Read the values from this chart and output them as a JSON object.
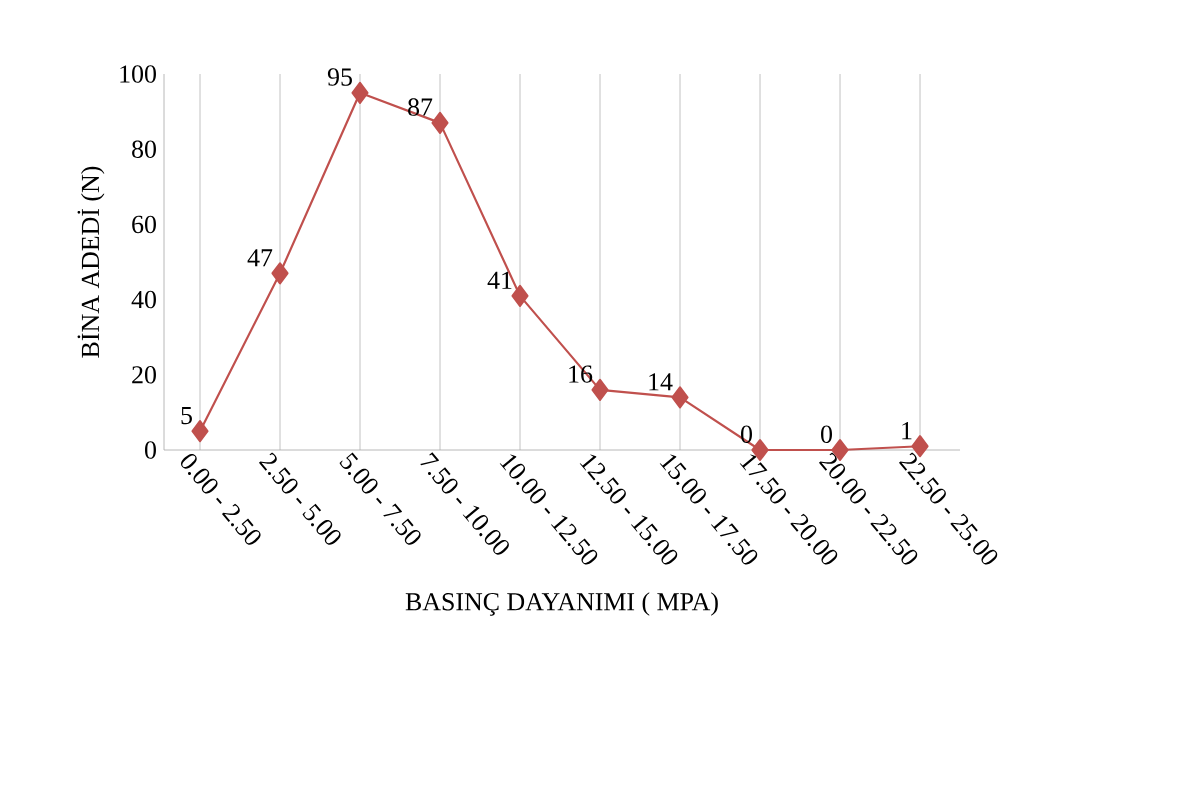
{
  "chart_data": {
    "type": "line",
    "xlabel": "BASINÇ DAYANIMI ( MPA)",
    "ylabel": "BİNA ADEDİ (N)",
    "categories": [
      "0.00 - 2.50",
      "2.50 - 5.00",
      "5.00 - 7.50",
      "7.50 - 10.00",
      "10.00 - 12.50",
      "12.50 - 15.00",
      "15.00 - 17.50",
      "17.50 - 20.00",
      "20.00 - 22.50",
      "22.50 - 25.00"
    ],
    "values": [
      5,
      47,
      95,
      87,
      41,
      16,
      14,
      0,
      0,
      1
    ],
    "color": "#c0504d",
    "marker": "diamond",
    "data_labels": true,
    "grid": "x",
    "ylim": [
      0,
      100
    ],
    "yticks": [
      0,
      20,
      40,
      60,
      80,
      100
    ]
  }
}
